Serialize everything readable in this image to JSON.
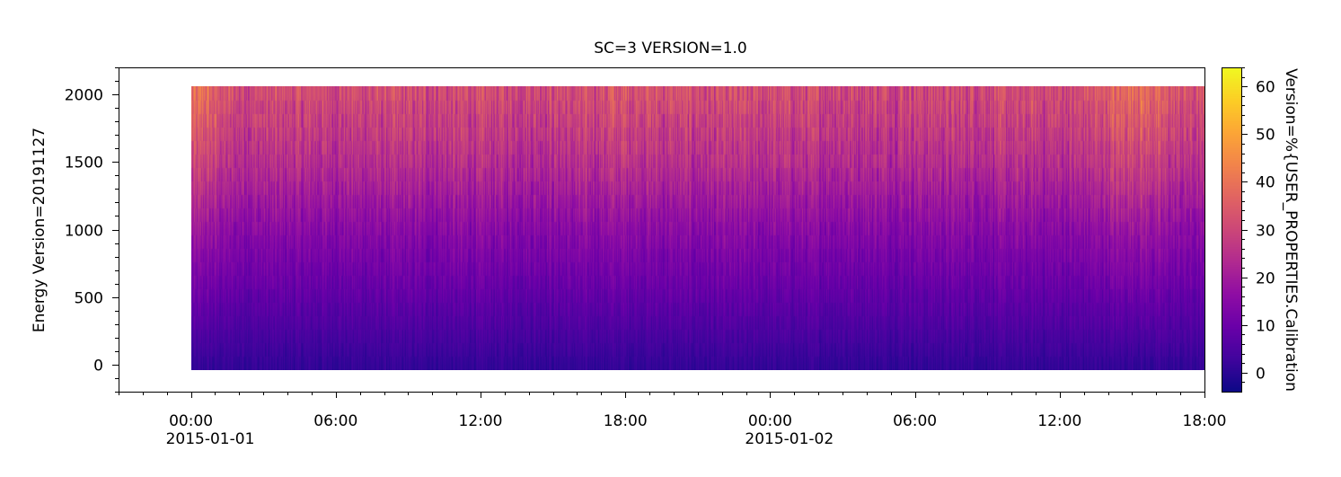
{
  "chart_data": {
    "type": "heatmap",
    "title": "SC=3 VERSION=1.0",
    "ylabel": "Energy Version=20191127",
    "xlabel": "",
    "colorbar_label": "Version=%{USER_PROPERTIES.Calibration",
    "colormap": "plasma",
    "x_range": [
      "2015-01-01 00:00",
      "2015-01-02 18:00"
    ],
    "x_axis_range": [
      "2014-12-31 21:00",
      "2015-01-02 18:00"
    ],
    "x_ticks": [
      {
        "time": "2015-01-01 00:00",
        "label": "00:00",
        "date_label": "2015-01-01"
      },
      {
        "time": "2015-01-01 06:00",
        "label": "06:00"
      },
      {
        "time": "2015-01-01 12:00",
        "label": "12:00"
      },
      {
        "time": "2015-01-01 18:00",
        "label": "18:00"
      },
      {
        "time": "2015-01-02 00:00",
        "label": "00:00",
        "date_label": "2015-01-02"
      },
      {
        "time": "2015-01-02 06:00",
        "label": "06:00"
      },
      {
        "time": "2015-01-02 12:00",
        "label": "12:00"
      },
      {
        "time": "2015-01-02 18:00",
        "label": "18:00"
      }
    ],
    "ylim": [
      -200,
      2200
    ],
    "y_ticks": [
      0,
      500,
      1000,
      1500,
      2000
    ],
    "energy_range": [
      -40,
      2060
    ],
    "energy_levels": 21,
    "color_range": [
      -4,
      64
    ],
    "colorbar_ticks": [
      0,
      10,
      20,
      30,
      40,
      50,
      60
    ],
    "value_profile": {
      "description": "Value rises with energy: ~0 near energy 0 up to ~30 near energy 2000; brighter patches (~40-45) near start and around 14:00-16:00 on 2015-01-02",
      "energy": [
        0,
        500,
        1000,
        1500,
        2000
      ],
      "typical_value": [
        1,
        8,
        15,
        24,
        31
      ]
    }
  }
}
